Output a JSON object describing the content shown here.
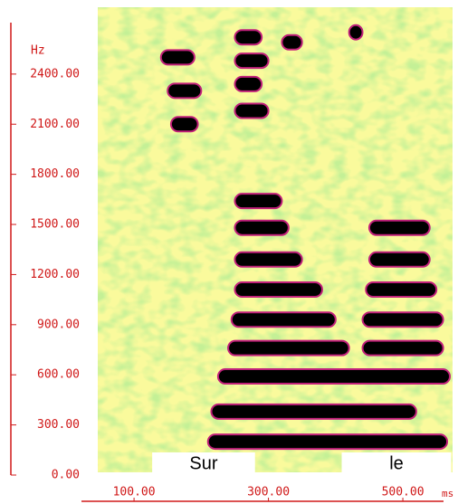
{
  "chart_data": {
    "type": "spectrogram",
    "y_unit": "Hz",
    "x_unit": "ms",
    "xlim": [
      46,
      574
    ],
    "ylim": [
      0,
      2800
    ],
    "xticks": [
      {
        "value": 100,
        "label": "100.00"
      },
      {
        "value": 300,
        "label": "300.00"
      },
      {
        "value": 500,
        "label": "500.00"
      }
    ],
    "yticks": [
      {
        "value": 0,
        "label": "0.00"
      },
      {
        "value": 300,
        "label": "300.00"
      },
      {
        "value": 600,
        "label": "600.00"
      },
      {
        "value": 900,
        "label": "900.00"
      },
      {
        "value": 1200,
        "label": "1200.00"
      },
      {
        "value": 1500,
        "label": "1500.00"
      },
      {
        "value": 1800,
        "label": "1800.00"
      },
      {
        "value": 2100,
        "label": "2100.00"
      },
      {
        "value": 2400,
        "label": "2400.00"
      }
    ],
    "segments": [
      {
        "label": "Sur",
        "t": [
          127,
          280
        ]
      },
      {
        "label": "le",
        "t": [
          409,
          572
        ]
      }
    ],
    "color": "#000000",
    "edge_color": "#c0207a",
    "background": "#fafa9c",
    "bands": [
      {
        "t": [
          210,
          566
        ],
        "f": 200
      },
      {
        "t": [
          215,
          520
        ],
        "f": 380
      },
      {
        "t": [
          225,
          570
        ],
        "f": 590
      },
      {
        "t": [
          240,
          420
        ],
        "f": 760
      },
      {
        "t": [
          440,
          560
        ],
        "f": 760
      },
      {
        "t": [
          245,
          400
        ],
        "f": 930
      },
      {
        "t": [
          440,
          560
        ],
        "f": 930
      },
      {
        "t": [
          250,
          380
        ],
        "f": 1110
      },
      {
        "t": [
          445,
          550
        ],
        "f": 1110
      },
      {
        "t": [
          250,
          350
        ],
        "f": 1290
      },
      {
        "t": [
          450,
          540
        ],
        "f": 1290
      },
      {
        "t": [
          250,
          330
        ],
        "f": 1480
      },
      {
        "t": [
          450,
          540
        ],
        "f": 1480
      },
      {
        "t": [
          250,
          320
        ],
        "f": 1640
      },
      {
        "t": [
          250,
          300
        ],
        "f": 2180
      },
      {
        "t": [
          250,
          290
        ],
        "f": 2340
      },
      {
        "t": [
          250,
          300
        ],
        "f": 2480
      },
      {
        "t": [
          250,
          290
        ],
        "f": 2620
      },
      {
        "t": [
          320,
          350
        ],
        "f": 2590
      },
      {
        "t": [
          420,
          440
        ],
        "f": 2650
      },
      {
        "t": [
          140,
          190
        ],
        "f": 2500
      },
      {
        "t": [
          150,
          200
        ],
        "f": 2300
      },
      {
        "t": [
          155,
          195
        ],
        "f": 2100
      }
    ]
  }
}
